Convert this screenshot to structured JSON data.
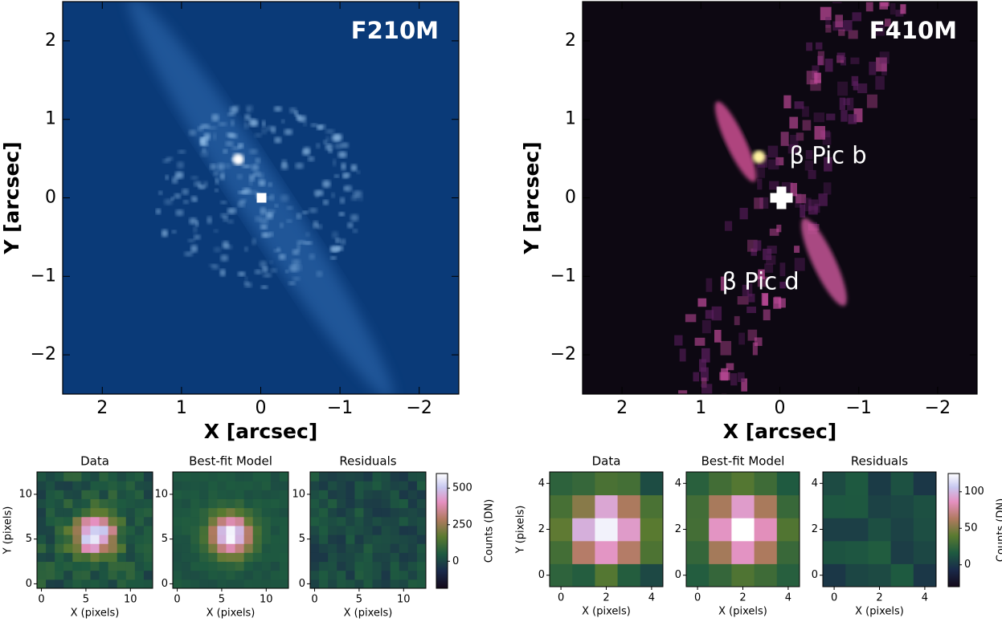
{
  "chart_data": [
    {
      "type": "image",
      "title": "F210M",
      "xlabel": "X [arcsec]",
      "ylabel": "Y [arcsec]",
      "xlim": [
        2.5,
        -2.5
      ],
      "ylim": [
        -2.5,
        2.5
      ],
      "xticks": [
        2,
        1,
        0,
        {
          "value": -1,
          "label": "−1"
        },
        {
          "value": -2,
          "label": "−2"
        }
      ],
      "yticks": [
        {
          "value": -2,
          "label": "−2"
        },
        {
          "value": -1,
          "label": "−1"
        },
        0,
        1,
        2
      ]
    },
    {
      "type": "image",
      "title": "F410M",
      "xlabel": "X [arcsec]",
      "ylabel": "Y [arcsec]",
      "xlim": [
        2.5,
        -2.5
      ],
      "ylim": [
        -2.5,
        2.5
      ],
      "xticks": [
        2,
        1,
        0,
        {
          "value": -1,
          "label": "−1"
        },
        {
          "value": -2,
          "label": "−2"
        }
      ],
      "yticks": [
        {
          "value": -2,
          "label": "−2"
        },
        {
          "value": -1,
          "label": "−1"
        },
        0,
        1,
        2
      ],
      "annotations": [
        "β Pic b",
        "β Pic d"
      ]
    },
    {
      "type": "image",
      "title": "Data",
      "xlabel": "X (pixels)",
      "ylabel": "Y (pixels)",
      "xlim": [
        -0.5,
        12.5
      ],
      "ylim": [
        -0.5,
        12.5
      ],
      "xticks": [
        0,
        5,
        10
      ],
      "yticks": [
        0,
        5,
        10
      ]
    },
    {
      "type": "image",
      "title": "Best-fit Model",
      "xlabel": "X (pixels)",
      "xlim": [
        -0.5,
        12.5
      ],
      "ylim": [
        -0.5,
        12.5
      ],
      "xticks": [
        0,
        5,
        10
      ],
      "yticks": [
        0,
        5,
        10
      ]
    },
    {
      "type": "image",
      "title": "Residuals",
      "xlabel": "X (pixels)",
      "xlim": [
        -0.5,
        12.5
      ],
      "ylim": [
        -0.5,
        12.5
      ],
      "xticks": [
        0,
        5,
        10
      ],
      "yticks": [
        0,
        5,
        10
      ]
    },
    {
      "type": "colorbar",
      "label": "Counts (DN)",
      "ylim": [
        -185,
        600
      ],
      "yticks": [
        0,
        250,
        500
      ]
    },
    {
      "type": "image",
      "title": "Data",
      "xlabel": "X (pixels)",
      "ylabel": "Y (pixels)",
      "xlim": [
        -0.5,
        4.5
      ],
      "ylim": [
        -0.5,
        4.5
      ],
      "xticks": [
        0,
        2,
        4
      ],
      "yticks": [
        0,
        2,
        4
      ]
    },
    {
      "type": "image",
      "title": "Best-fit Model",
      "xlabel": "X (pixels)",
      "xlim": [
        -0.5,
        4.5
      ],
      "ylim": [
        -0.5,
        4.5
      ],
      "xticks": [
        0,
        2,
        4
      ],
      "yticks": [
        0,
        2,
        4
      ]
    },
    {
      "type": "image",
      "title": "Residuals",
      "xlabel": "X (pixels)",
      "xlim": [
        -0.5,
        4.5
      ],
      "ylim": [
        -0.5,
        4.5
      ],
      "xticks": [
        0,
        2,
        4
      ],
      "yticks": [
        0,
        2,
        4
      ]
    },
    {
      "type": "colorbar",
      "label": "Counts (DN)",
      "ylim": [
        -30,
        125
      ],
      "yticks": [
        0,
        50,
        100
      ]
    }
  ]
}
